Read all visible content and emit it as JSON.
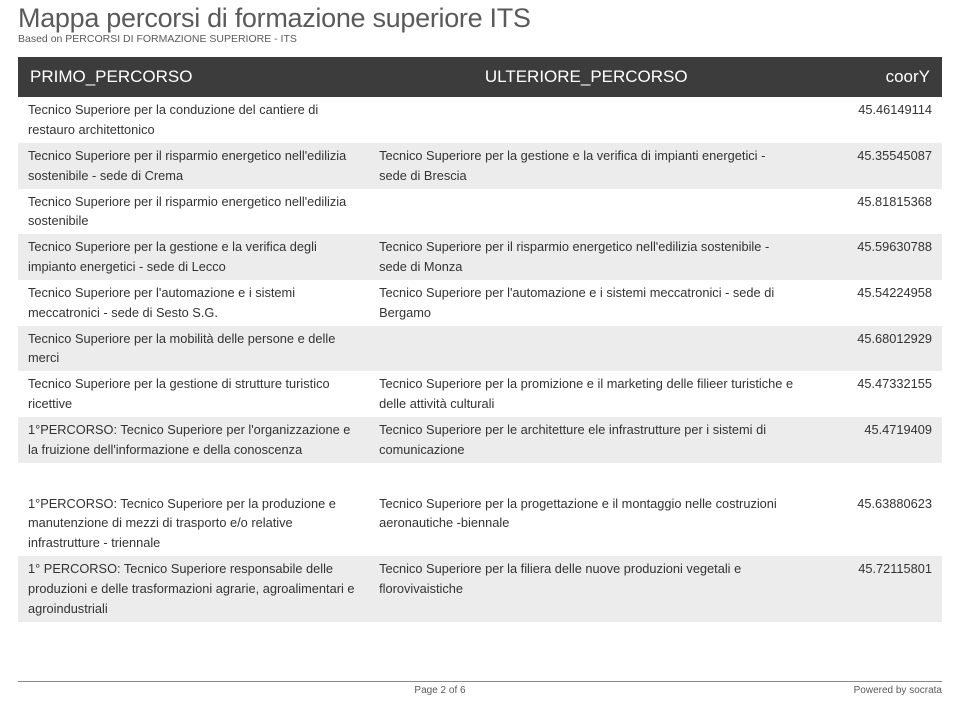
{
  "title": "Mappa percorsi di formazione superiore ITS",
  "subtitle": "Based on PERCORSI DI FORMAZIONE SUPERIORE - ITS",
  "columns": [
    "PRIMO_PERCORSO",
    "ULTERIORE_PERCORSO",
    "coorY"
  ],
  "column_align": [
    "left",
    "center",
    "right"
  ],
  "colors": {
    "header_bg": "#3c3c3c",
    "header_fg": "#ffffff",
    "row_alt_bg": "#ececec",
    "text": "#333333",
    "title_fg": "#5a5a5a",
    "border": "#8a8a8a"
  },
  "group1": [
    {
      "p": "Tecnico Superiore per la conduzione del cantiere di restauro architettonico",
      "u": "",
      "y": "45.46149114"
    },
    {
      "p": "Tecnico Superiore per il risparmio energetico nell'edilizia sostenibile - sede di Crema",
      "u": "Tecnico Superiore per la gestione e la verifica di impianti energetici - sede di Brescia",
      "y": "45.35545087"
    },
    {
      "p": "Tecnico Superiore per il risparmio energetico nell'edilizia sostenibile",
      "u": "",
      "y": "45.81815368"
    },
    {
      "p": "Tecnico Superiore per la gestione e la verifica degli impianto energetici - sede di Lecco",
      "u": "Tecnico Superiore per il risparmio energetico nell'edilizia sostenibile - sede di Monza",
      "y": "45.59630788"
    },
    {
      "p": "Tecnico Superiore per l'automazione e i sistemi meccatronici - sede di Sesto S.G.",
      "u": "Tecnico Superiore per l'automazione e i sistemi meccatronici - sede di Bergamo",
      "y": "45.54224958"
    },
    {
      "p": "Tecnico Superiore per la mobilità delle persone e delle merci",
      "u": "",
      "y": "45.68012929"
    },
    {
      "p": "Tecnico Superiore per la gestione di strutture turistico ricettive",
      "u": "Tecnico Superiore per la promizione e il marketing delle filieer turistiche e delle attività culturali",
      "y": "45.47332155"
    },
    {
      "p": "1°PERCORSO: Tecnico Superiore per l'organizzazione e la fruizione dell'informazione e della conoscenza",
      "u": "Tecnico Superiore per le architetture ele infrastrutture per i sistemi di comunicazione",
      "y": "45.4719409"
    }
  ],
  "group2": [
    {
      "p": "1°PERCORSO:  Tecnico Superiore per la produzione e manutenzione di mezzi di trasporto e/o relative infrastrutture - triennale",
      "u": "Tecnico Superiore per la progettazione e il montaggio nelle costruzioni aeronautiche -biennale",
      "y": "45.63880623"
    },
    {
      "p": "1° PERCORSO: Tecnico Superiore responsabile delle produzioni e delle trasformazioni agrarie, agroalimentari e agroindustriali",
      "u": "Tecnico Superiore per la filiera delle nuove produzioni vegetali e florovivaistiche",
      "y": "45.72115801"
    }
  ],
  "footer": {
    "page": "Page 2 of 6",
    "powered": "Powered by socrata"
  }
}
